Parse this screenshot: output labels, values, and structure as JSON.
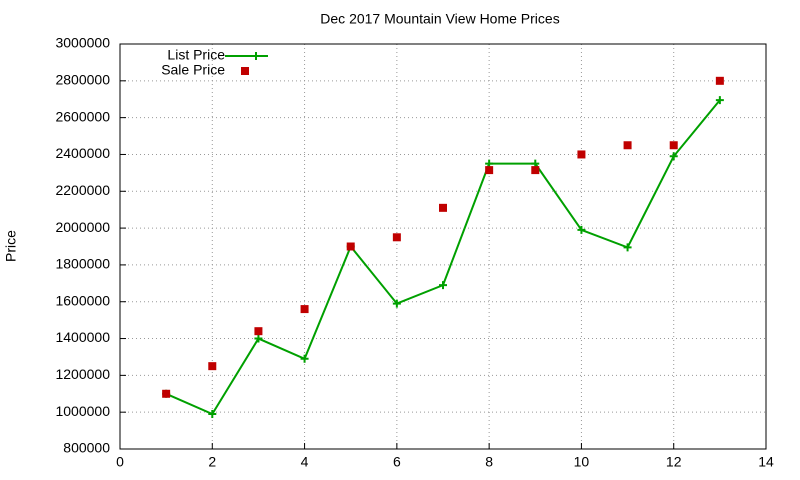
{
  "chart_data": {
    "type": "line",
    "title": "Dec 2017 Mountain View Home Prices",
    "y_label": "Price",
    "x": [
      1,
      2,
      3,
      4,
      5,
      6,
      7,
      8,
      9,
      10,
      11,
      12,
      13
    ],
    "series": [
      {
        "name": "List Price",
        "color": "#00a000",
        "style": "linespoints",
        "values": [
          1100000,
          990000,
          1400000,
          1290000,
          1900000,
          1590000,
          1690000,
          2350000,
          2350000,
          1990000,
          1895000,
          2390000,
          2695000
        ]
      },
      {
        "name": "Sale Price",
        "color": "#c00000",
        "style": "points",
        "values": [
          1100000,
          1250000,
          1440000,
          1560000,
          1900000,
          1950000,
          2110000,
          2315000,
          2315000,
          2400000,
          2450000,
          2450000,
          2800000
        ]
      }
    ],
    "xlim": [
      0,
      14
    ],
    "xticks": [
      0,
      2,
      4,
      6,
      8,
      10,
      12,
      14
    ],
    "ylim": [
      800000,
      3000000
    ],
    "yticks": [
      800000,
      1000000,
      1200000,
      1400000,
      1600000,
      1800000,
      2000000,
      2200000,
      2400000,
      2600000,
      2800000,
      3000000
    ],
    "grid": true,
    "legend": "top-left"
  }
}
